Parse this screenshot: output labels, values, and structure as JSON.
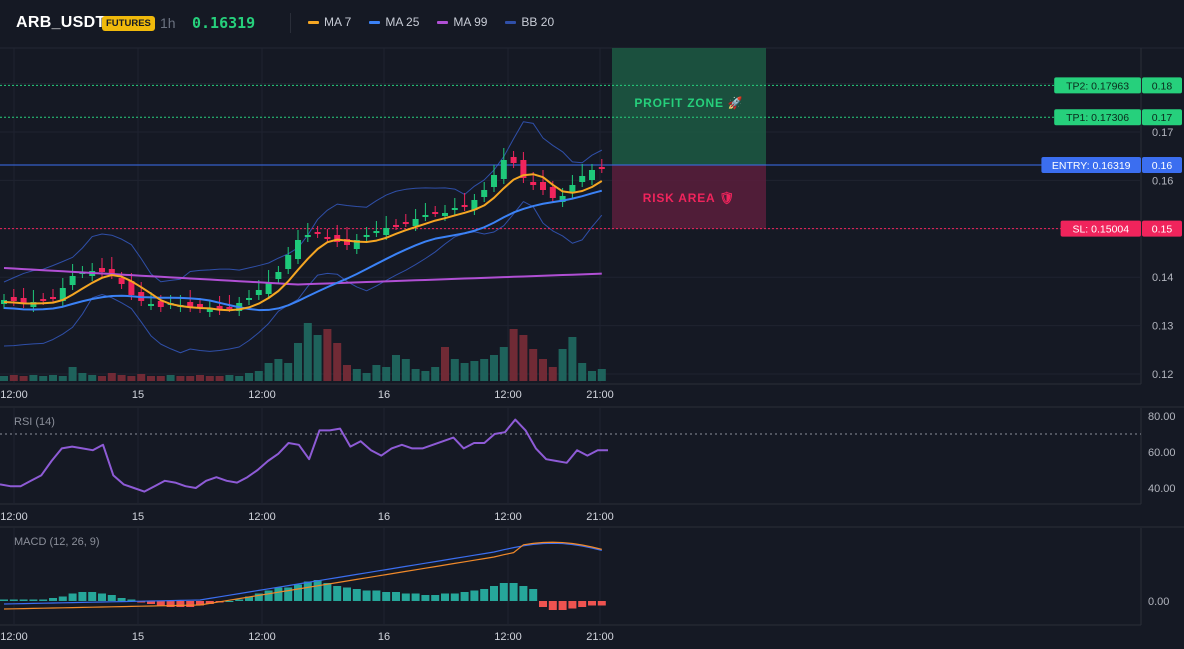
{
  "header": {
    "symbol": "ARB_USDT",
    "badge": "FUTURES",
    "timeframe": "1h",
    "price": "0.16319",
    "indicators": [
      {
        "label": "MA 7",
        "color": "#f5a623"
      },
      {
        "label": "MA 25",
        "color": "#3b82f6"
      },
      {
        "label": "MA 99",
        "color": "#b04fd4"
      },
      {
        "label": "BB 20",
        "color": "#2f4fa8"
      }
    ]
  },
  "zones": {
    "profit_label": "PROFIT ZONE 🚀",
    "risk_label": "RISK AREA 🛡"
  },
  "levels": {
    "tp2": {
      "label": "TP2: 0.17963",
      "axis": "0.18",
      "value": 0.17963
    },
    "tp1": {
      "label": "TP1: 0.17306",
      "axis": "0.17",
      "value": 0.17306
    },
    "entry": {
      "label": "ENTRY: 0.16319",
      "axis": "0.16",
      "value": 0.16319
    },
    "sl": {
      "label": "SL: 0.15004",
      "axis": "0.15",
      "value": 0.15004
    }
  },
  "main_axis": {
    "ticks": [
      "0.17",
      "0.16",
      "0.14",
      "0.13",
      "0.12"
    ],
    "tick_values": [
      0.17,
      0.16,
      0.14,
      0.13,
      0.12
    ]
  },
  "time_axis": {
    "labels": [
      "12:00",
      "15",
      "12:00",
      "16",
      "12:00",
      "21:00"
    ]
  },
  "rsi": {
    "title": "RSI (14)",
    "ticks": [
      "80.00",
      "60.00",
      "40.00"
    ],
    "tick_values": [
      80,
      60,
      40
    ],
    "reference_level": 70,
    "values": [
      42,
      41,
      41,
      44,
      47,
      55,
      62,
      63,
      62,
      61,
      64,
      47,
      42,
      40,
      38,
      41,
      44,
      43,
      41,
      40,
      44,
      46,
      44,
      43,
      46,
      50,
      55,
      59,
      65,
      64,
      56,
      72,
      72,
      73,
      63,
      66,
      61,
      58,
      62,
      64,
      62,
      62,
      64,
      66,
      68,
      62,
      65,
      65,
      70,
      71,
      78,
      72,
      62,
      56,
      55,
      54,
      61,
      58,
      61,
      61
    ]
  },
  "macd": {
    "title": "MACD (12, 26, 9)",
    "ticks": [
      "0.00"
    ],
    "zero_label": "0.00"
  },
  "colors": {
    "up": "#26a69a",
    "down": "#ef5350",
    "candle_up": "#1ec97a",
    "candle_down": "#f0245c",
    "profit": "#26d07c",
    "risk": "#f0245c",
    "entry": "#3b6ef0"
  }
}
